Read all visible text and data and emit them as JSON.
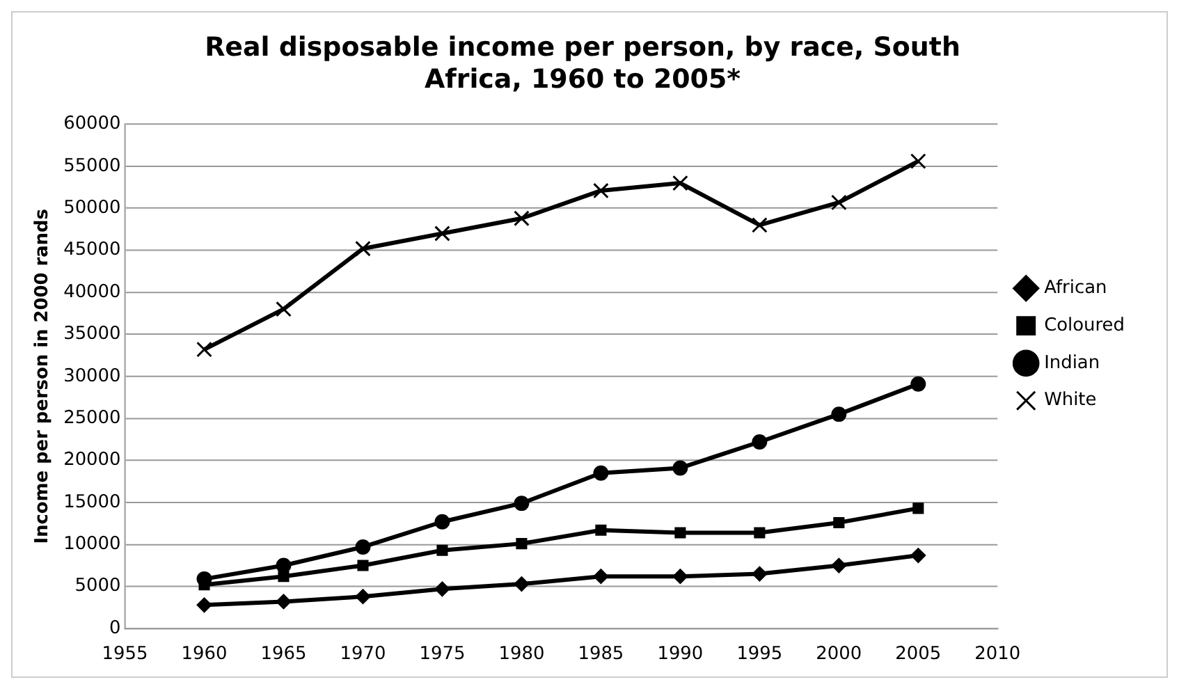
{
  "chart_data": {
    "type": "line",
    "title": "Real disposable income per person, by race, South Africa, 1960 to 2005*",
    "ylabel": "Income per person in 2000 rands",
    "x": [
      1960,
      1965,
      1970,
      1975,
      1980,
      1985,
      1990,
      1995,
      2000,
      2005
    ],
    "xlim": [
      1955,
      2010
    ],
    "xticks": [
      1955,
      1960,
      1965,
      1970,
      1975,
      1980,
      1985,
      1990,
      1995,
      2000,
      2005,
      2010
    ],
    "ylim": [
      0,
      60000
    ],
    "yticks": [
      0,
      5000,
      10000,
      15000,
      20000,
      25000,
      30000,
      35000,
      40000,
      45000,
      50000,
      55000,
      60000
    ],
    "grid": "y",
    "legend": "right",
    "line_style": "solid",
    "series": [
      {
        "name": "African",
        "color": "#000000",
        "marker": "diamond",
        "values": [
          2800,
          3200,
          3800,
          4700,
          5300,
          6200,
          6200,
          6500,
          7500,
          8700
        ]
      },
      {
        "name": "Coloured",
        "color": "#000000",
        "marker": "square",
        "values": [
          5200,
          6200,
          7500,
          9300,
          10100,
          11700,
          11400,
          11400,
          12600,
          14300
        ]
      },
      {
        "name": "Indian",
        "color": "#000000",
        "marker": "circle",
        "values": [
          5900,
          7500,
          9700,
          12700,
          14900,
          18500,
          19100,
          22200,
          25500,
          29100
        ]
      },
      {
        "name": "White",
        "color": "#000000",
        "marker": "cross",
        "values": [
          33200,
          38000,
          45200,
          47000,
          48800,
          52100,
          53000,
          48000,
          50700,
          55600
        ]
      }
    ]
  }
}
